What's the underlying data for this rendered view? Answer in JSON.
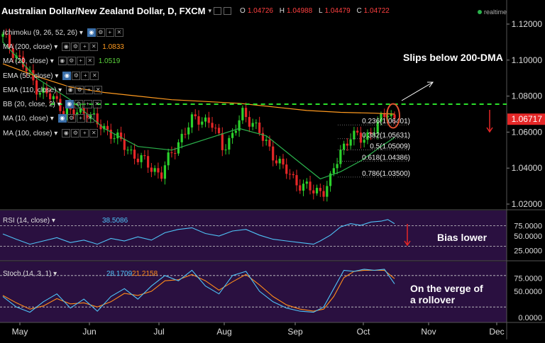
{
  "header": {
    "title": "Australian Dollar/New Zealand Dollar, D, FXCM",
    "ohlc": [
      {
        "k": "O",
        "v": "1.04726"
      },
      {
        "k": "H",
        "v": "1.04988"
      },
      {
        "k": "L",
        "v": "1.04479"
      },
      {
        "k": "C",
        "v": "1.04722"
      }
    ],
    "realtime": "realtime"
  },
  "indicators": [
    {
      "label": "Ichimoku (9, 26, 52, 26)",
      "value": "",
      "color": "#ddd"
    },
    {
      "label": "MA (200, close)",
      "value": "1.0833",
      "color": "#ff9a1f"
    },
    {
      "label": "MA (20, close)",
      "value": "1.0519",
      "color": "#5bd33c"
    },
    {
      "label": "EMA (55, close)",
      "value": "",
      "color": "#ddd"
    },
    {
      "label": "EMA (110, close)",
      "value": "",
      "color": "#ddd"
    },
    {
      "label": "BB (20, close, 2)",
      "value": "",
      "color": "#ddd"
    },
    {
      "label": "MA (10, close)",
      "value": "",
      "color": "#ddd"
    },
    {
      "label": "MA (100, close)",
      "value": "",
      "color": "#ddd"
    }
  ],
  "oscillators": {
    "rsi": {
      "label": "RSI (14, close)",
      "value": "38.5086",
      "value_color": "#4fc3f7"
    },
    "stoch": {
      "label": "Stoch (14, 3, 1)",
      "k_value": "28.1709",
      "k_color": "#4fc3f7",
      "d_value": "21.2158",
      "d_color": "#ff8c1a"
    }
  },
  "annotations": {
    "main": "Slips below 200-DMA",
    "rsi": "Bias lower",
    "stoch_line1": "On the verge of",
    "stoch_line2": "a rollover"
  },
  "colors": {
    "bull": "#2bd12b",
    "bear": "#e52727",
    "ma200": "#ff9a1f",
    "ma20": "#2bb24c",
    "rsi": "#4fc3f7",
    "stoch_k": "#4fc3f7",
    "stoch_d": "#ff8c1a",
    "osc_bg": "#2a1040",
    "dashed": "#2be02b",
    "price_tag": "#e52727"
  },
  "chart_data": {
    "type": "candlestick",
    "instrument": "AUD/NZD",
    "timeframe": "D",
    "x_labels": [
      "May",
      "Jun",
      "Jul",
      "Aug",
      "Sep",
      "Oct",
      "Nov",
      "Dec"
    ],
    "y_ticks": [
      "1.12000",
      "1.10000",
      "1.08000",
      "1.06000",
      "1.04000",
      "1.02000"
    ],
    "price_axis": {
      "min": 1.02,
      "max": 1.12
    },
    "last_price": "1.06717",
    "resistance_level": 1.0755,
    "fib_levels": [
      {
        "label": "0.236(1.06401)",
        "value": 1.06401
      },
      {
        "label": "0.382(1.05631)",
        "value": 1.05631
      },
      {
        "label": "0.5(1.05009)",
        "value": 1.05009
      },
      {
        "label": "0.618(1.04386)",
        "value": 1.04386
      },
      {
        "label": "0.786(1.03500)",
        "value": 1.035
      }
    ],
    "close_path": [
      [
        0,
        1.113
      ],
      [
        5,
        1.1
      ],
      [
        10,
        1.085
      ],
      [
        15,
        1.078
      ],
      [
        20,
        1.07
      ],
      [
        25,
        1.072
      ],
      [
        28,
        1.064
      ],
      [
        32,
        1.06
      ],
      [
        36,
        1.052
      ],
      [
        40,
        1.046
      ],
      [
        44,
        1.04
      ],
      [
        47,
        1.037
      ],
      [
        50,
        1.048
      ],
      [
        53,
        1.058
      ],
      [
        56,
        1.066
      ],
      [
        59,
        1.068
      ],
      [
        62,
        1.064
      ],
      [
        65,
        1.052
      ],
      [
        68,
        1.058
      ],
      [
        71,
        1.07
      ],
      [
        74,
        1.066
      ],
      [
        77,
        1.056
      ],
      [
        80,
        1.048
      ],
      [
        83,
        1.04
      ],
      [
        86,
        1.034
      ],
      [
        89,
        1.03
      ],
      [
        92,
        1.027
      ],
      [
        95,
        1.028
      ],
      [
        97,
        1.033
      ],
      [
        100,
        1.05
      ],
      [
        103,
        1.058
      ],
      [
        106,
        1.056
      ],
      [
        109,
        1.06
      ],
      [
        112,
        1.066
      ],
      [
        114,
        1.072
      ],
      [
        116,
        1.067
      ]
    ],
    "ma200_path": [
      [
        0,
        1.098
      ],
      [
        10,
        1.091
      ],
      [
        20,
        1.085
      ],
      [
        30,
        1.082
      ],
      [
        40,
        1.08
      ],
      [
        50,
        1.078
      ],
      [
        60,
        1.077
      ],
      [
        70,
        1.076
      ],
      [
        80,
        1.074
      ],
      [
        90,
        1.072
      ],
      [
        100,
        1.071
      ],
      [
        110,
        1.0705
      ],
      [
        116,
        1.07
      ]
    ],
    "ma20_path": [
      [
        0,
        1.11
      ],
      [
        10,
        1.09
      ],
      [
        20,
        1.078
      ],
      [
        30,
        1.062
      ],
      [
        40,
        1.052
      ],
      [
        50,
        1.05
      ],
      [
        60,
        1.056
      ],
      [
        70,
        1.062
      ],
      [
        78,
        1.058
      ],
      [
        86,
        1.046
      ],
      [
        94,
        1.034
      ],
      [
        100,
        1.038
      ],
      [
        106,
        1.044
      ],
      [
        112,
        1.052
      ],
      [
        116,
        1.057
      ]
    ],
    "rsi_axis": {
      "min": 0,
      "max": 100,
      "ticks": [
        "75.0000",
        "50.0000",
        "25.0000"
      ]
    },
    "rsi_path": [
      [
        0,
        55
      ],
      [
        4,
        42
      ],
      [
        8,
        30
      ],
      [
        12,
        38
      ],
      [
        16,
        46
      ],
      [
        20,
        34
      ],
      [
        24,
        40
      ],
      [
        28,
        30
      ],
      [
        32,
        44
      ],
      [
        36,
        38
      ],
      [
        40,
        48
      ],
      [
        44,
        40
      ],
      [
        48,
        58
      ],
      [
        52,
        66
      ],
      [
        56,
        70
      ],
      [
        60,
        56
      ],
      [
        64,
        50
      ],
      [
        68,
        62
      ],
      [
        72,
        66
      ],
      [
        76,
        52
      ],
      [
        80,
        42
      ],
      [
        84,
        38
      ],
      [
        88,
        34
      ],
      [
        92,
        30
      ],
      [
        94,
        38
      ],
      [
        97,
        52
      ],
      [
        100,
        72
      ],
      [
        103,
        80
      ],
      [
        106,
        76
      ],
      [
        109,
        84
      ],
      [
        112,
        86
      ],
      [
        114,
        90
      ],
      [
        116,
        80
      ]
    ],
    "stoch_axis": {
      "min": 0,
      "max": 100,
      "ticks": [
        "75.0000",
        "50.0000",
        "0.0000"
      ]
    },
    "stoch_k_path": [
      [
        0,
        40
      ],
      [
        4,
        20
      ],
      [
        8,
        10
      ],
      [
        12,
        30
      ],
      [
        16,
        45
      ],
      [
        20,
        18
      ],
      [
        24,
        35
      ],
      [
        28,
        12
      ],
      [
        32,
        40
      ],
      [
        36,
        55
      ],
      [
        40,
        35
      ],
      [
        44,
        60
      ],
      [
        48,
        80
      ],
      [
        52,
        70
      ],
      [
        56,
        90
      ],
      [
        60,
        60
      ],
      [
        64,
        45
      ],
      [
        68,
        80
      ],
      [
        72,
        88
      ],
      [
        76,
        50
      ],
      [
        80,
        30
      ],
      [
        84,
        18
      ],
      [
        88,
        12
      ],
      [
        92,
        10
      ],
      [
        95,
        20
      ],
      [
        98,
        55
      ],
      [
        101,
        90
      ],
      [
        104,
        88
      ],
      [
        107,
        92
      ],
      [
        110,
        90
      ],
      [
        113,
        92
      ],
      [
        116,
        64
      ]
    ],
    "stoch_d_path": [
      [
        0,
        42
      ],
      [
        4,
        28
      ],
      [
        8,
        16
      ],
      [
        12,
        22
      ],
      [
        16,
        36
      ],
      [
        20,
        26
      ],
      [
        24,
        28
      ],
      [
        28,
        20
      ],
      [
        32,
        30
      ],
      [
        36,
        46
      ],
      [
        40,
        42
      ],
      [
        44,
        50
      ],
      [
        48,
        70
      ],
      [
        52,
        72
      ],
      [
        56,
        82
      ],
      [
        60,
        70
      ],
      [
        64,
        52
      ],
      [
        68,
        68
      ],
      [
        72,
        82
      ],
      [
        76,
        62
      ],
      [
        80,
        40
      ],
      [
        84,
        24
      ],
      [
        88,
        16
      ],
      [
        92,
        12
      ],
      [
        95,
        16
      ],
      [
        98,
        40
      ],
      [
        101,
        76
      ],
      [
        104,
        88
      ],
      [
        107,
        90
      ],
      [
        110,
        90
      ],
      [
        113,
        90
      ],
      [
        116,
        74
      ]
    ]
  }
}
